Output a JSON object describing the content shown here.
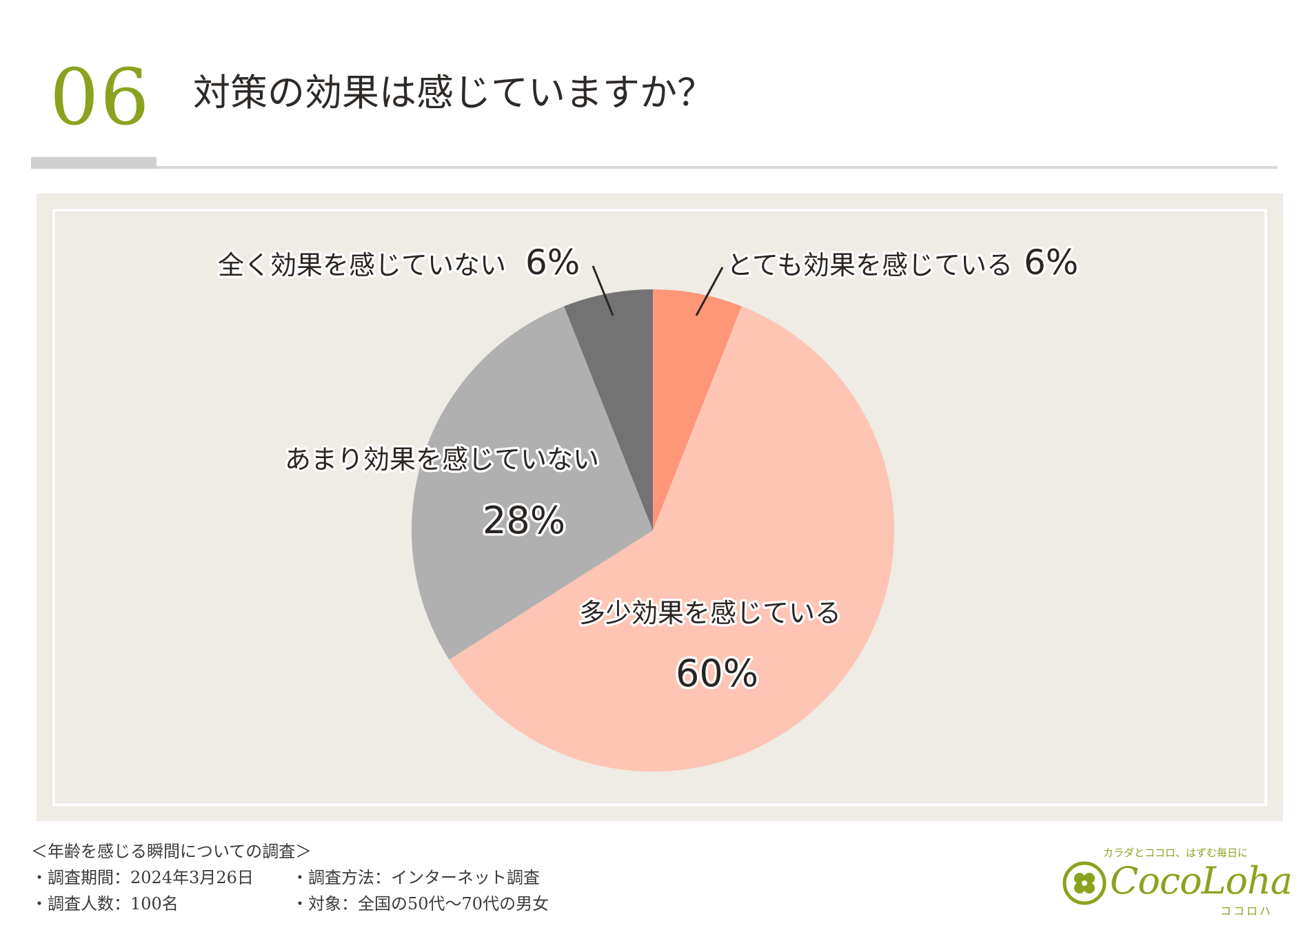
{
  "header": {
    "number": "06",
    "title": "対策の効果は感じていますか？"
  },
  "colors": {
    "accent": "#8aa31e",
    "panel": "#efebe5"
  },
  "chart_data": {
    "type": "pie",
    "start": "top, clockwise",
    "slices": [
      {
        "label": "とても効果を感じている",
        "value": 6,
        "display": "6%",
        "color": "#ff9677"
      },
      {
        "label": "多少効果を感じている",
        "value": 60,
        "display": "60%",
        "color": "#fec4b4"
      },
      {
        "label": "あまり効果を感じていない",
        "value": 28,
        "display": "28%",
        "color": "#b0b0b0"
      },
      {
        "label": "全く効果を感じていない",
        "value": 6,
        "display": "6%",
        "color": "#737373"
      }
    ]
  },
  "footer": {
    "survey_title": "＜年齢を感じる瞬間についての調査＞",
    "period": "・調査期間：2024年3月26日",
    "method": "・調査方法：インターネット調査",
    "respondents": "・調査人数：100名",
    "target": "・対象：全国の50代～70代の男女"
  },
  "logo": {
    "tagline": "カラダとココロ、はずむ毎日に",
    "name": "CocoLoha",
    "kana": "ココロハ",
    "icon": "clover-icon"
  }
}
